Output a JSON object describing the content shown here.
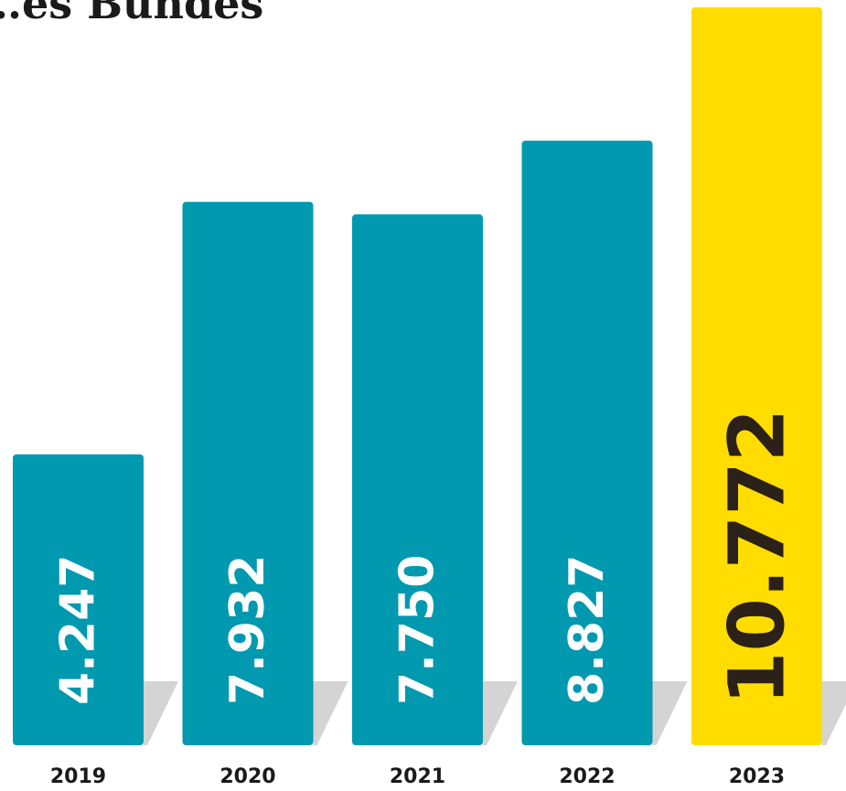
{
  "chart_data": {
    "type": "bar",
    "title": "…es Bundes",
    "categories": [
      "2019",
      "2020",
      "2021",
      "2022",
      "2023"
    ],
    "values": [
      4247,
      7932,
      7750,
      8827,
      10772
    ],
    "value_labels": [
      "4.247",
      "7.932",
      "7.750",
      "8.827",
      "10.772"
    ],
    "highlight_index": 4,
    "ylim": [
      0,
      10772
    ],
    "grid": false,
    "legend": "none",
    "colors": {
      "bar": "#0099b0",
      "highlight": "#ffdd00",
      "label_default": "#ffffff",
      "label_highlight": "#2b2118",
      "shadow": "#d4d4d4",
      "title": "#1a1a1a",
      "tick": "#1a1a1a"
    }
  }
}
